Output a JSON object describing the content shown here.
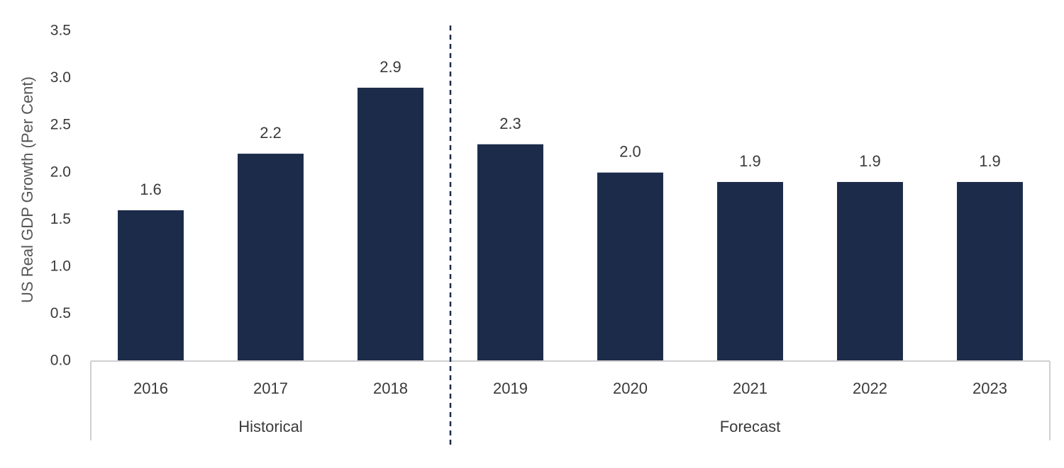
{
  "chart_data": {
    "type": "bar",
    "title": "",
    "xlabel": "",
    "ylabel": "US Real GDP Growth (Per Cent)",
    "ylim": [
      0,
      3.5
    ],
    "yticks": [
      "0.0",
      "0.5",
      "1.0",
      "1.5",
      "2.0",
      "2.5",
      "3.0",
      "3.5"
    ],
    "grid": false,
    "legend": "none",
    "categories": [
      "2016",
      "2017",
      "2018",
      "2019",
      "2020",
      "2021",
      "2022",
      "2023"
    ],
    "values": [
      1.6,
      2.2,
      2.9,
      2.3,
      2.0,
      1.9,
      1.9,
      1.9
    ],
    "data_labels": [
      "1.6",
      "2.2",
      "2.9",
      "2.3",
      "2.0",
      "1.9",
      "1.9",
      "1.9"
    ],
    "groups": [
      {
        "label": "Historical",
        "categories": [
          "2016",
          "2017",
          "2018"
        ]
      },
      {
        "label": "Forecast",
        "categories": [
          "2019",
          "2020",
          "2021",
          "2022",
          "2023"
        ]
      }
    ],
    "bar_color": "#1c2b4a",
    "divider_style": "dashed"
  }
}
